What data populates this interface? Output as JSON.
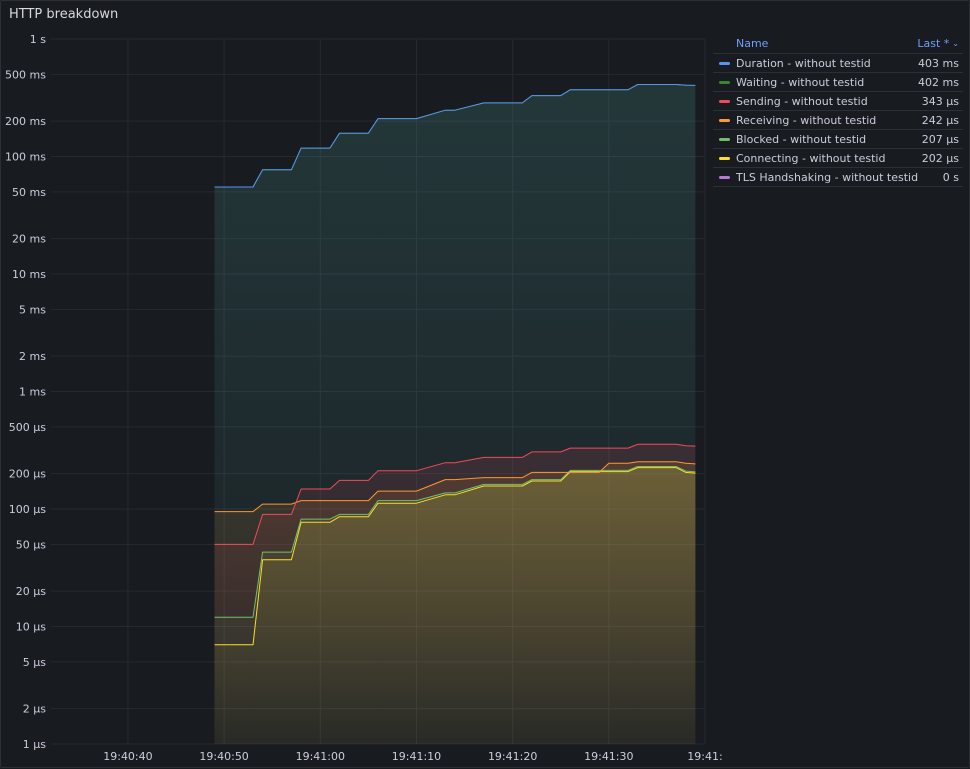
{
  "panel": {
    "title": "HTTP breakdown"
  },
  "legend": {
    "name_header": "Name",
    "last_header": "Last *",
    "sort_icon": "chevron-down-icon",
    "rows": [
      {
        "name": "Duration - without testid",
        "value": "403 ms",
        "color": "#5794f2"
      },
      {
        "name": "Waiting - without testid",
        "value": "402 ms",
        "color": "#37872d"
      },
      {
        "name": "Sending - without testid",
        "value": "343 µs",
        "color": "#f2495c"
      },
      {
        "name": "Receiving - without testid",
        "value": "242 µs",
        "color": "#ff9830"
      },
      {
        "name": "Blocked - without testid",
        "value": "207 µs",
        "color": "#73bf69"
      },
      {
        "name": "Connecting - without testid",
        "value": "202 µs",
        "color": "#fade2a"
      },
      {
        "name": "TLS Handshaking - without testid",
        "value": "0 s",
        "color": "#b877d9"
      }
    ]
  },
  "chart_data": {
    "type": "line",
    "title": "HTTP breakdown",
    "xlabel": "",
    "ylabel": "",
    "y_scale": "log",
    "ylim": [
      1e-06,
      1
    ],
    "xlim": [
      "19:40:32",
      "19:41:40"
    ],
    "y_ticks": [
      {
        "value": 1,
        "label": "1 s"
      },
      {
        "value": 0.5,
        "label": "500 ms"
      },
      {
        "value": 0.2,
        "label": "200 ms"
      },
      {
        "value": 0.1,
        "label": "100 ms"
      },
      {
        "value": 0.05,
        "label": "50 ms"
      },
      {
        "value": 0.02,
        "label": "20 ms"
      },
      {
        "value": 0.01,
        "label": "10 ms"
      },
      {
        "value": 0.005,
        "label": "5 ms"
      },
      {
        "value": 0.002,
        "label": "2 ms"
      },
      {
        "value": 0.001,
        "label": "1 ms"
      },
      {
        "value": 0.0005,
        "label": "500 µs"
      },
      {
        "value": 0.0002,
        "label": "200 µs"
      },
      {
        "value": 0.0001,
        "label": "100 µs"
      },
      {
        "value": 5e-05,
        "label": "50 µs"
      },
      {
        "value": 2e-05,
        "label": "20 µs"
      },
      {
        "value": 1e-05,
        "label": "10 µs"
      },
      {
        "value": 5e-06,
        "label": "5 µs"
      },
      {
        "value": 2e-06,
        "label": "2 µs"
      },
      {
        "value": 1e-06,
        "label": "1 µs"
      }
    ],
    "x_ticks": [
      {
        "value": "19:40:40",
        "label": "19:40:40"
      },
      {
        "value": "19:40:50",
        "label": "19:40:50"
      },
      {
        "value": "19:41:00",
        "label": "19:41:00"
      },
      {
        "value": "19:41:10",
        "label": "19:41:10"
      },
      {
        "value": "19:41:20",
        "label": "19:41:20"
      },
      {
        "value": "19:41:30",
        "label": "19:41:30"
      },
      {
        "value": "19:41:40",
        "label": "19:41:"
      }
    ],
    "x": [
      "19:40:49",
      "19:40:53",
      "19:40:54",
      "19:40:57",
      "19:40:58",
      "19:41:01",
      "19:41:02",
      "19:41:05",
      "19:41:06",
      "19:41:09",
      "19:41:10",
      "19:41:13",
      "19:41:14",
      "19:41:17",
      "19:41:18",
      "19:41:21",
      "19:41:22",
      "19:41:25",
      "19:41:26",
      "19:41:29",
      "19:41:30",
      "19:41:32",
      "19:41:33",
      "19:41:37",
      "19:41:38",
      "19:41:39"
    ],
    "series": [
      {
        "name": "Duration - without testid",
        "color": "#5794f2",
        "values": [
          0.055,
          0.055,
          0.077,
          0.077,
          0.118,
          0.118,
          0.158,
          0.158,
          0.21,
          0.21,
          0.21,
          0.248,
          0.248,
          0.286,
          0.286,
          0.286,
          0.33,
          0.33,
          0.37,
          0.37,
          0.37,
          0.37,
          0.41,
          0.41,
          0.405,
          0.403
        ]
      },
      {
        "name": "Waiting - without testid",
        "color": "#37872d",
        "values": [
          0.055,
          0.055,
          0.077,
          0.077,
          0.118,
          0.118,
          0.158,
          0.158,
          0.21,
          0.21,
          0.21,
          0.248,
          0.248,
          0.286,
          0.286,
          0.286,
          0.33,
          0.33,
          0.37,
          0.37,
          0.37,
          0.37,
          0.41,
          0.41,
          0.404,
          0.402
        ]
      },
      {
        "name": "Sending - without testid",
        "color": "#f2495c",
        "values": [
          5e-05,
          5e-05,
          9e-05,
          9e-05,
          0.000148,
          0.000148,
          0.000175,
          0.000175,
          0.000212,
          0.000212,
          0.000212,
          0.000248,
          0.000248,
          0.000275,
          0.000275,
          0.000275,
          0.000306,
          0.000306,
          0.00033,
          0.00033,
          0.00033,
          0.00033,
          0.000355,
          0.000355,
          0.000345,
          0.000343
        ]
      },
      {
        "name": "Receiving - without testid",
        "color": "#ff9830",
        "values": [
          9.5e-05,
          9.5e-05,
          0.00011,
          0.00011,
          0.000118,
          0.000118,
          0.000118,
          0.000118,
          0.000142,
          0.000142,
          0.000142,
          0.000178,
          0.000178,
          0.000185,
          0.000185,
          0.000185,
          0.000205,
          0.000205,
          0.000205,
          0.000205,
          0.000245,
          0.000245,
          0.000252,
          0.000252,
          0.000245,
          0.000242
        ]
      },
      {
        "name": "Blocked - without testid",
        "color": "#73bf69",
        "values": [
          1.2e-05,
          1.2e-05,
          4.3e-05,
          4.3e-05,
          8.2e-05,
          8.2e-05,
          9e-05,
          9e-05,
          0.000118,
          0.000118,
          0.000118,
          0.000137,
          0.000137,
          0.000162,
          0.000162,
          0.000162,
          0.000178,
          0.000178,
          0.000213,
          0.000213,
          0.000213,
          0.000213,
          0.00023,
          0.00023,
          0.00021,
          0.000207
        ]
      },
      {
        "name": "Connecting - without testid",
        "color": "#fade2a",
        "values": [
          7e-06,
          7e-06,
          3.7e-05,
          3.7e-05,
          7.7e-05,
          7.7e-05,
          8.6e-05,
          8.6e-05,
          0.000112,
          0.000112,
          0.000112,
          0.000132,
          0.000132,
          0.000157,
          0.000157,
          0.000157,
          0.000173,
          0.000173,
          0.000208,
          0.000208,
          0.000208,
          0.000208,
          0.000225,
          0.000225,
          0.000205,
          0.000202
        ]
      },
      {
        "name": "TLS Handshaking - without testid",
        "color": "#b877d9",
        "values": [
          0,
          0,
          0,
          0,
          0,
          0,
          0,
          0,
          0,
          0,
          0,
          0,
          0,
          0,
          0,
          0,
          0,
          0,
          0,
          0,
          0,
          0,
          0,
          0,
          0,
          0
        ]
      }
    ]
  }
}
